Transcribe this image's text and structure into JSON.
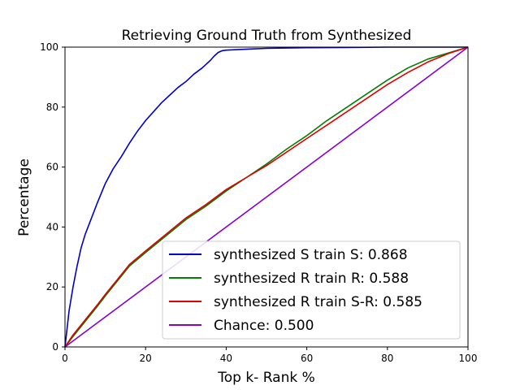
{
  "chart_data": {
    "type": "line",
    "title": "Retrieving Ground Truth from Synthesized",
    "xlabel": "Top k- Rank %",
    "ylabel": "Percentage",
    "xlim": [
      0,
      100
    ],
    "ylim": [
      0,
      100
    ],
    "xticks": [
      "0",
      "20",
      "40",
      "60",
      "80",
      "100"
    ],
    "yticks": [
      "0",
      "20",
      "40",
      "60",
      "80",
      "100"
    ],
    "grid": false,
    "legend_position": "lower-right",
    "series": [
      {
        "name": "synthesized S train S: 0.868",
        "color": "#0000cc",
        "x": [
          0,
          1,
          2,
          3,
          4,
          5,
          6,
          8,
          10,
          12,
          14,
          16,
          18,
          20,
          22,
          24,
          26,
          28,
          30,
          32,
          34,
          36,
          37,
          38,
          39,
          40,
          45,
          50,
          60,
          70,
          80,
          90,
          100
        ],
        "y": [
          0,
          12,
          20,
          27,
          33,
          37.5,
          41,
          48,
          54.5,
          59.5,
          63.5,
          68,
          72,
          75.5,
          78.5,
          81.5,
          84,
          86.5,
          88.5,
          91,
          93,
          95.5,
          97,
          98.2,
          98.8,
          99,
          99.3,
          99.6,
          99.8,
          99.9,
          100,
          100,
          100
        ]
      },
      {
        "name": "synthesized R train R: 0.588",
        "color": "#007f00",
        "x": [
          0,
          2,
          5,
          8,
          10,
          13,
          16,
          20,
          25,
          30,
          35,
          40,
          45,
          50,
          55,
          60,
          65,
          70,
          75,
          80,
          85,
          90,
          95,
          100
        ],
        "y": [
          0,
          3.5,
          8.5,
          13.5,
          17,
          22,
          27,
          31.5,
          37,
          42.5,
          47,
          52,
          56.5,
          61,
          66,
          70.5,
          75.5,
          80,
          84.5,
          89,
          93,
          96,
          98,
          100
        ]
      },
      {
        "name": "synthesized R train S-R: 0.585",
        "color": "#e00000",
        "x": [
          0,
          2,
          5,
          8,
          10,
          13,
          16,
          20,
          25,
          30,
          35,
          40,
          45,
          50,
          55,
          60,
          65,
          70,
          75,
          80,
          85,
          90,
          95,
          100
        ],
        "y": [
          0,
          4,
          9,
          14,
          17.5,
          22.5,
          27.5,
          32,
          37.5,
          43,
          47.5,
          52.5,
          56.5,
          60.5,
          65,
          69.5,
          74,
          78.5,
          83,
          87.5,
          91.5,
          95,
          97.8,
          100
        ]
      },
      {
        "name": "Chance: 0.500",
        "color": "#8800cc",
        "x": [
          0,
          100
        ],
        "y": [
          0,
          100
        ]
      }
    ]
  }
}
